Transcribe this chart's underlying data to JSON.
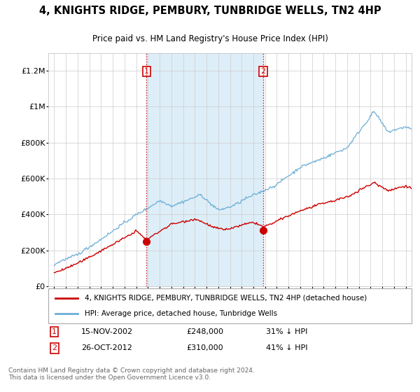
{
  "title": "4, KNIGHTS RIDGE, PEMBURY, TUNBRIDGE WELLS, TN2 4HP",
  "subtitle": "Price paid vs. HM Land Registry's House Price Index (HPI)",
  "footer": "Contains HM Land Registry data © Crown copyright and database right 2024.\nThis data is licensed under the Open Government Licence v3.0.",
  "legend_line1": "4, KNIGHTS RIDGE, PEMBURY, TUNBRIDGE WELLS, TN2 4HP (detached house)",
  "legend_line2": "HPI: Average price, detached house, Tunbridge Wells",
  "transaction1_date": "15-NOV-2002",
  "transaction1_price": "£248,000",
  "transaction1_hpi": "31% ↓ HPI",
  "transaction1_x": 2002.88,
  "transaction1_y": 248000,
  "transaction2_date": "26-OCT-2012",
  "transaction2_price": "£310,000",
  "transaction2_hpi": "41% ↓ HPI",
  "transaction2_x": 2012.83,
  "transaction2_y": 310000,
  "hpi_color": "#6baed6",
  "price_color": "#cc0000",
  "vline_color": "#cc0000",
  "shade_color": "#ddeef8",
  "background_color": "#ffffff",
  "plot_bg_color": "#ffffff",
  "grid_color": "#cccccc",
  "ylim": [
    0,
    1300000
  ],
  "xlim_start": 1994.5,
  "xlim_end": 2025.5,
  "yticks": [
    0,
    200000,
    400000,
    600000,
    800000,
    1000000,
    1200000
  ],
  "ytick_labels": [
    "£0",
    "£200K",
    "£400K",
    "£600K",
    "£800K",
    "£1M",
    "£1.2M"
  ],
  "xticks": [
    1995,
    1996,
    1997,
    1998,
    1999,
    2000,
    2001,
    2002,
    2003,
    2004,
    2005,
    2006,
    2007,
    2008,
    2009,
    2010,
    2011,
    2012,
    2013,
    2014,
    2015,
    2016,
    2017,
    2018,
    2019,
    2020,
    2021,
    2022,
    2023,
    2024,
    2025
  ]
}
